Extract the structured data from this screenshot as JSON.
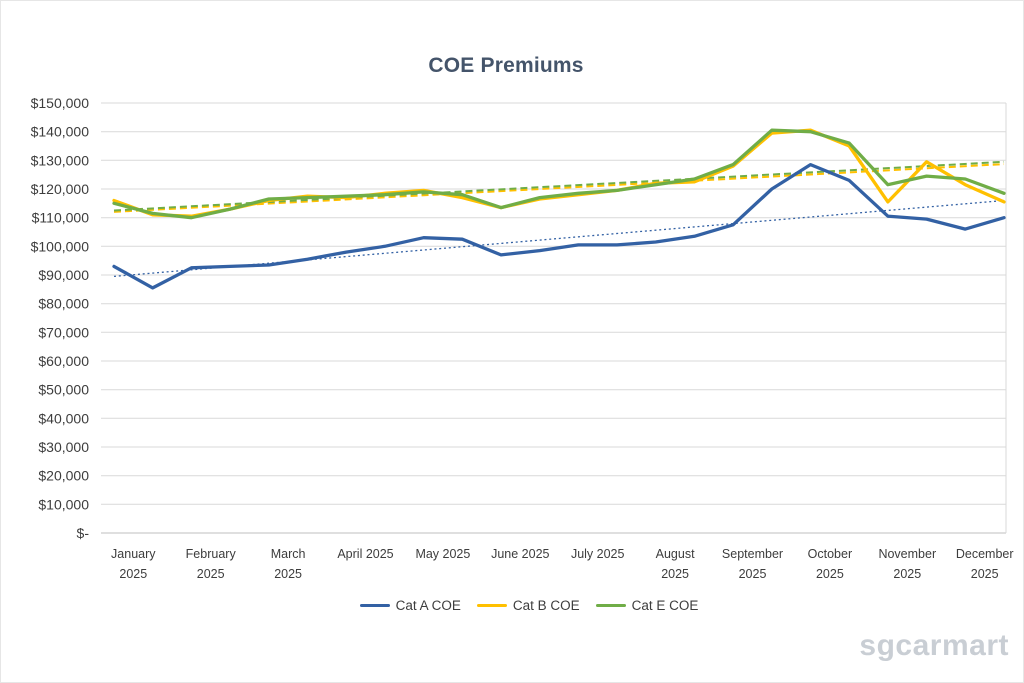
{
  "watermark": {
    "text": "sgcarmart"
  },
  "chart_data": {
    "type": "line",
    "title": "COE Premiums",
    "grid": true,
    "legend_position": "bottom",
    "ylim": [
      0,
      150000
    ],
    "y_axis": {
      "min": 0,
      "max": 150000,
      "step": 10000,
      "currency_prefix": "$",
      "zero_label": "$-"
    },
    "points_per_month": 2,
    "x_months": [
      {
        "lines": [
          "January",
          "2025"
        ]
      },
      {
        "lines": [
          "February",
          "2025"
        ]
      },
      {
        "lines": [
          "March",
          "2025"
        ]
      },
      {
        "lines": [
          "April 2025"
        ]
      },
      {
        "lines": [
          "May 2025"
        ]
      },
      {
        "lines": [
          "June 2025"
        ]
      },
      {
        "lines": [
          "July 2025"
        ]
      },
      {
        "lines": [
          "August",
          "2025"
        ]
      },
      {
        "lines": [
          "September",
          "2025"
        ]
      },
      {
        "lines": [
          "October",
          "2025"
        ]
      },
      {
        "lines": [
          "November",
          "2025"
        ]
      },
      {
        "lines": [
          "December",
          "2025"
        ]
      }
    ],
    "series": [
      {
        "name": "Cat A COE",
        "color": "#3361A4",
        "values": [
          93000,
          85500,
          92500,
          93000,
          93500,
          95500,
          98000,
          100000,
          103000,
          102500,
          97000,
          98500,
          100500,
          100500,
          101500,
          103500,
          107500,
          120000,
          128500,
          123000,
          110500,
          109500,
          106000,
          110000
        ]
      },
      {
        "name": "Cat B COE",
        "color": "#FFC000",
        "values": [
          116000,
          111000,
          110500,
          113000,
          116000,
          117500,
          117000,
          118500,
          119500,
          117000,
          113500,
          116500,
          118000,
          119500,
          122000,
          122500,
          128000,
          139500,
          140500,
          135000,
          115500,
          129500,
          121500,
          115500
        ]
      },
      {
        "name": "Cat E COE",
        "color": "#70AD47",
        "values": [
          115000,
          111500,
          110000,
          113000,
          116500,
          117000,
          117500,
          118000,
          119000,
          118000,
          113500,
          117000,
          118500,
          119500,
          121500,
          123500,
          128500,
          140500,
          140000,
          136000,
          121500,
          124500,
          123500,
          118500
        ]
      }
    ],
    "trendlines": [
      {
        "series": "Cat A COE",
        "color": "#3361A4",
        "dash": "dot",
        "start": 89500,
        "end": 116000
      },
      {
        "series": "Cat B COE",
        "color": "#FFC000",
        "dash": "dash",
        "start": 112000,
        "end": 128700
      },
      {
        "series": "Cat E COE",
        "color": "#70AD47",
        "dash": "dash",
        "start": 112500,
        "end": 129500
      }
    ]
  }
}
